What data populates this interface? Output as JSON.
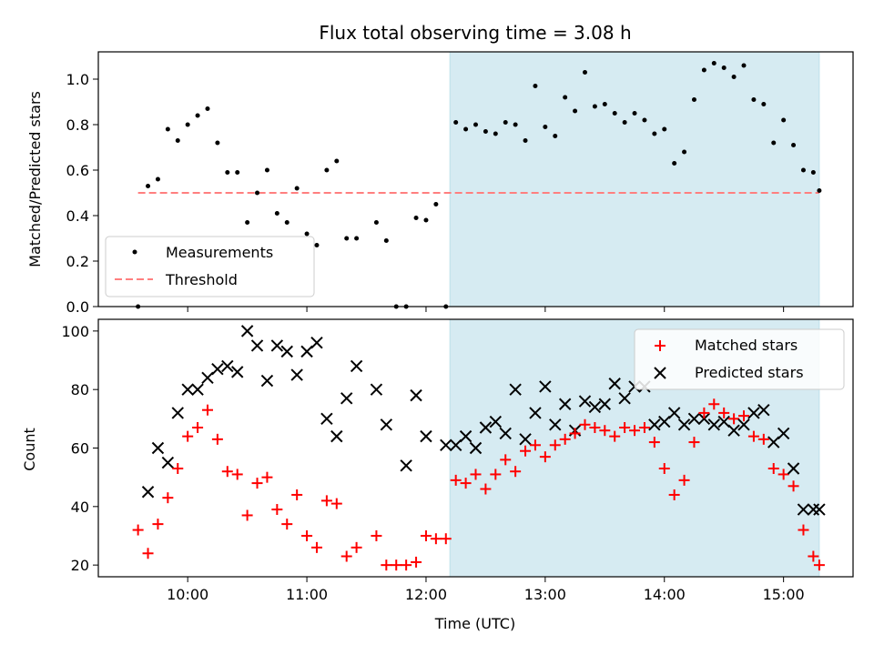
{
  "chart_data": [
    {
      "type": "scatter",
      "title": "Flux total observing time = 3.08 h",
      "xlabel": "",
      "ylabel": "Matched/Predicted stars",
      "xlim": [
        "09:15",
        "15:35"
      ],
      "ylim": [
        0,
        1.12
      ],
      "yticks": [
        0.0,
        0.2,
        0.4,
        0.6,
        0.8,
        1.0
      ],
      "ytick_labels": [
        "0.0",
        "0.2",
        "0.4",
        "0.6",
        "0.8",
        "1.0"
      ],
      "shaded_interval": [
        "12:12",
        "15:18"
      ],
      "legend": {
        "location": "lower left",
        "entries": [
          "Measurements",
          "Threshold"
        ]
      },
      "threshold": {
        "name": "Threshold",
        "value": 0.5,
        "x": [
          "09:35",
          "15:18"
        ],
        "color": "#ff7f7f"
      },
      "series": [
        {
          "name": "Measurements",
          "color": "#000000",
          "x": [
            "09:35",
            "09:40",
            "09:45",
            "09:50",
            "09:55",
            "10:00",
            "10:05",
            "10:10",
            "10:15",
            "10:20",
            "10:25",
            "10:30",
            "10:35",
            "10:40",
            "10:45",
            "10:50",
            "10:55",
            "11:00",
            "11:05",
            "11:10",
            "11:15",
            "11:20",
            "11:25",
            "11:35",
            "11:40",
            "11:45",
            "11:50",
            "11:55",
            "12:00",
            "12:05",
            "12:10",
            "12:15",
            "12:20",
            "12:25",
            "12:30",
            "12:35",
            "12:40",
            "12:45",
            "12:50",
            "12:55",
            "13:00",
            "13:05",
            "13:10",
            "13:15",
            "13:20",
            "13:25",
            "13:30",
            "13:35",
            "13:40",
            "13:45",
            "13:50",
            "13:55",
            "14:00",
            "14:05",
            "14:10",
            "14:15",
            "14:20",
            "14:25",
            "14:30",
            "14:35",
            "14:40",
            "14:45",
            "14:50",
            "14:55",
            "15:00",
            "15:05",
            "15:10",
            "15:15",
            "15:18"
          ],
          "y": [
            0.0,
            0.53,
            0.56,
            0.78,
            0.73,
            0.8,
            0.84,
            0.87,
            0.72,
            0.59,
            0.59,
            0.37,
            0.5,
            0.6,
            0.41,
            0.37,
            0.52,
            0.32,
            0.27,
            0.6,
            0.64,
            0.3,
            0.3,
            0.37,
            0.29,
            0.0,
            0.0,
            0.39,
            0.38,
            0.45,
            0.0,
            0.81,
            0.78,
            0.8,
            0.77,
            0.76,
            0.81,
            0.8,
            0.73,
            0.97,
            0.79,
            0.75,
            0.92,
            0.86,
            1.03,
            0.88,
            0.89,
            0.85,
            0.81,
            0.85,
            0.82,
            0.76,
            0.78,
            0.63,
            0.68,
            0.91,
            1.04,
            1.07,
            1.05,
            1.01,
            1.06,
            0.91,
            0.89,
            0.72,
            0.82,
            0.71,
            0.6,
            0.59,
            0.51
          ]
        }
      ]
    },
    {
      "type": "scatter",
      "title": "",
      "xlabel": "Time (UTC)",
      "ylabel": "Count",
      "xlim": [
        "09:15",
        "15:35"
      ],
      "ylim": [
        16,
        104
      ],
      "yticks": [
        20,
        40,
        60,
        80,
        100
      ],
      "ytick_labels": [
        "20",
        "40",
        "60",
        "80",
        "100"
      ],
      "xticks": [
        "10:00",
        "11:00",
        "12:00",
        "13:00",
        "14:00",
        "15:00"
      ],
      "shaded_interval": [
        "12:12",
        "15:18"
      ],
      "legend": {
        "location": "upper right",
        "entries": [
          "Matched stars",
          "Predicted stars"
        ]
      },
      "x": [
        "09:35",
        "09:40",
        "09:45",
        "09:50",
        "09:55",
        "10:00",
        "10:05",
        "10:10",
        "10:15",
        "10:20",
        "10:25",
        "10:30",
        "10:35",
        "10:40",
        "10:45",
        "10:50",
        "10:55",
        "11:00",
        "11:05",
        "11:10",
        "11:15",
        "11:20",
        "11:25",
        "11:35",
        "11:40",
        "11:45",
        "11:50",
        "11:55",
        "12:00",
        "12:05",
        "12:10",
        "12:15",
        "12:20",
        "12:25",
        "12:30",
        "12:35",
        "12:40",
        "12:45",
        "12:50",
        "12:55",
        "13:00",
        "13:05",
        "13:10",
        "13:15",
        "13:20",
        "13:25",
        "13:30",
        "13:35",
        "13:40",
        "13:45",
        "13:50",
        "13:55",
        "14:00",
        "14:05",
        "14:10",
        "14:15",
        "14:20",
        "14:25",
        "14:30",
        "14:35",
        "14:40",
        "14:45",
        "14:50",
        "14:55",
        "15:00",
        "15:05",
        "15:10",
        "15:15",
        "15:18"
      ],
      "series": [
        {
          "name": "Matched stars",
          "marker": "+",
          "color": "#ff0000",
          "values": [
            32,
            24,
            34,
            43,
            53,
            64,
            67,
            73,
            63,
            52,
            51,
            37,
            48,
            50,
            39,
            34,
            44,
            30,
            26,
            42,
            41,
            23,
            26,
            30,
            20,
            20,
            20,
            21,
            30,
            29,
            29,
            49,
            48,
            51,
            46,
            51,
            56,
            52,
            59,
            61,
            57,
            61,
            63,
            65,
            68,
            67,
            66,
            64,
            67,
            66,
            67,
            62,
            53,
            44,
            49,
            62,
            72,
            75,
            72,
            70,
            71,
            64,
            63,
            53,
            51,
            47,
            32,
            23,
            20
          ]
        },
        {
          "name": "Predicted stars",
          "marker": "x",
          "color": "#000000",
          "values": [
            null,
            45,
            60,
            55,
            72,
            80,
            80,
            84,
            87,
            88,
            86,
            100,
            95,
            83,
            95,
            93,
            85,
            93,
            96,
            70,
            64,
            77,
            88,
            80,
            68,
            null,
            54,
            78,
            64,
            null,
            61,
            61,
            64,
            60,
            67,
            69,
            65,
            80,
            63,
            72,
            81,
            68,
            75,
            66,
            76,
            74,
            75,
            82,
            77,
            81,
            81,
            68,
            69,
            72,
            68,
            70,
            70,
            68,
            69,
            66,
            68,
            72,
            73,
            62,
            65,
            53,
            39,
            39,
            39
          ]
        }
      ]
    }
  ]
}
